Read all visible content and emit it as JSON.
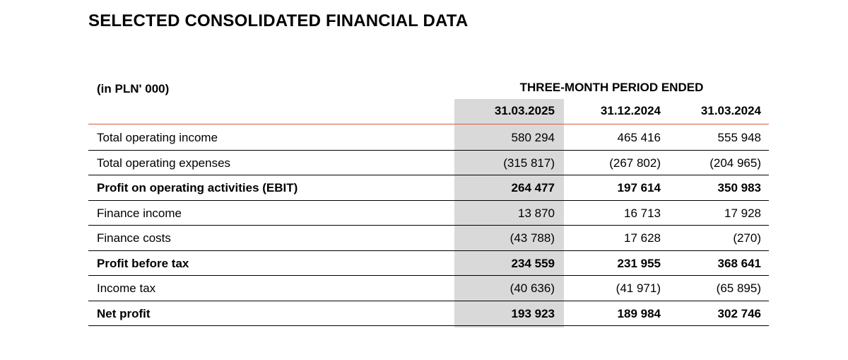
{
  "title": "SELECTED CONSOLIDATED FINANCIAL DATA",
  "units": "(in PLN' 000)",
  "period_header": "THREE-MONTH PERIOD ENDED",
  "columns": [
    "31.03.2025",
    "31.12.2024",
    "31.03.2024"
  ],
  "colors": {
    "highlight_column": "#d9d9d9",
    "header_rule": "#d65a3a",
    "row_rule": "#000000"
  },
  "rows": [
    {
      "label": "Total operating income",
      "bold": false,
      "values": [
        "580 294",
        "465 416",
        "555 948"
      ]
    },
    {
      "label": "Total operating expenses",
      "bold": false,
      "values": [
        "(315 817)",
        "(267 802)",
        "(204 965)"
      ]
    },
    {
      "label": "Profit on operating activities (EBIT)",
      "bold": true,
      "values": [
        "264 477",
        "197 614",
        "350 983"
      ]
    },
    {
      "label": "Finance income",
      "bold": false,
      "values": [
        "13 870",
        "16 713",
        "17 928"
      ]
    },
    {
      "label": "Finance costs",
      "bold": false,
      "values": [
        "(43 788)",
        "17 628",
        "(270)"
      ]
    },
    {
      "label": "Profit before tax",
      "bold": true,
      "values": [
        "234 559",
        "231 955",
        "368 641"
      ]
    },
    {
      "label": "Income tax",
      "bold": false,
      "values": [
        "(40 636)",
        "(41 971)",
        "(65 895)"
      ]
    },
    {
      "label": "Net profit",
      "bold": true,
      "values": [
        "193 923",
        "189 984",
        "302 746"
      ]
    }
  ]
}
